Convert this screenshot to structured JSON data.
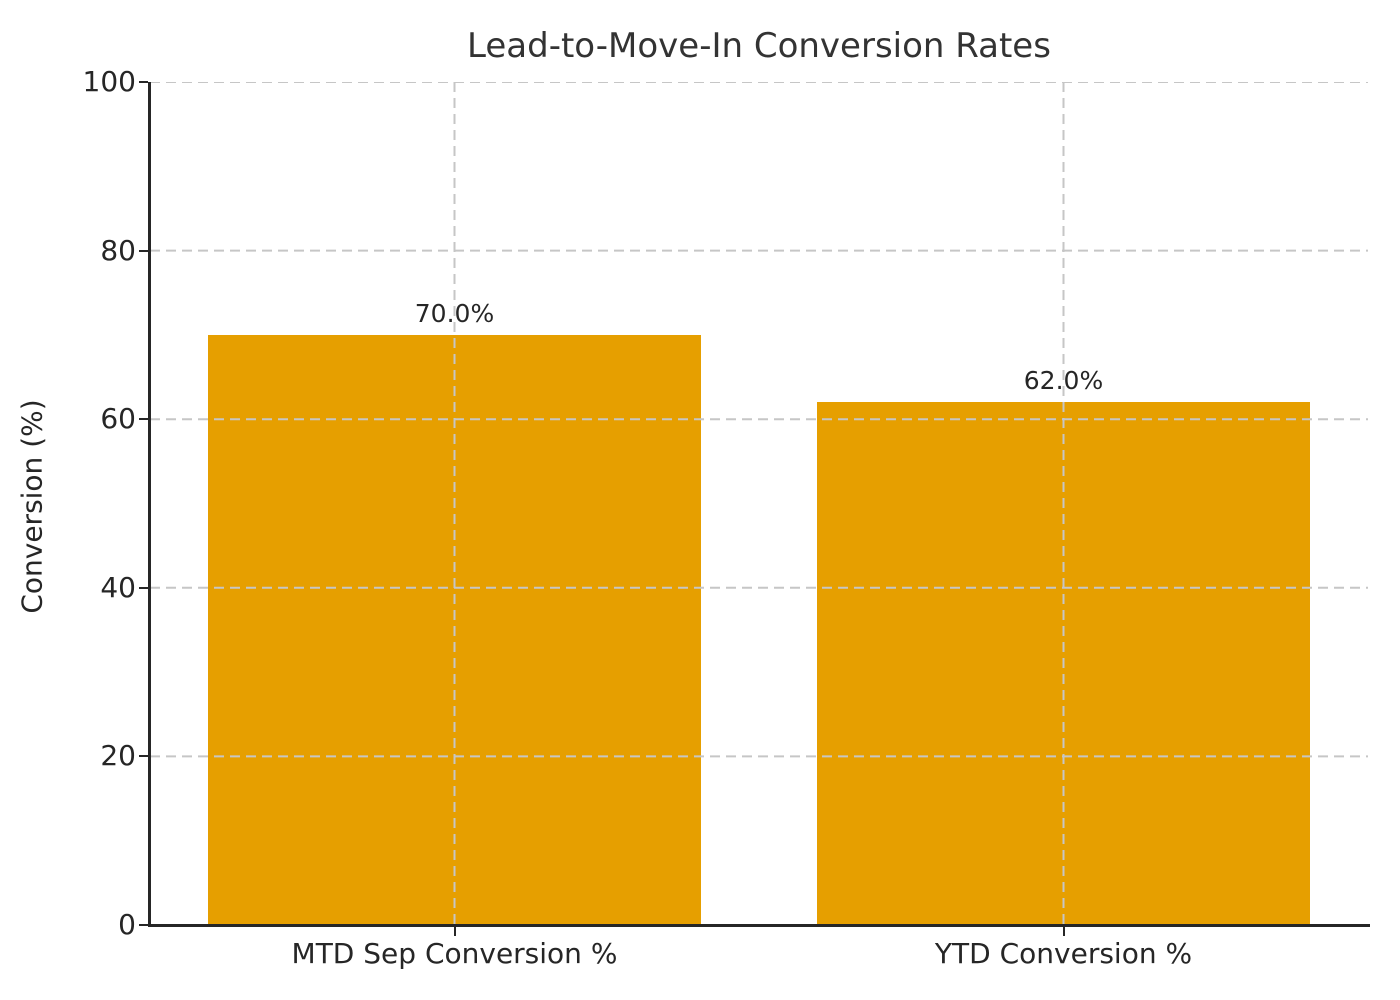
{
  "chart_data": {
    "type": "bar",
    "title": "Lead-to-Move-In Conversion Rates",
    "ylabel": "Conversion (%)",
    "xlabel": "",
    "categories": [
      "MTD Sep Conversion %",
      "YTD Conversion %"
    ],
    "values": [
      70.0,
      62.0
    ],
    "value_labels": [
      "70.0%",
      "62.0%"
    ],
    "ylim": [
      0,
      100
    ],
    "yticks": [
      0,
      20,
      40,
      60,
      80,
      100
    ],
    "grid": {
      "style": "dashed",
      "axes": "both",
      "above_bars": true
    },
    "legend": "none",
    "colors": {
      "bar": "#E69F00",
      "grid": "#c6c6c6",
      "axis": "#262626",
      "title_text": "#333333",
      "tick_text": "#262626",
      "background": "#ffffff"
    }
  }
}
